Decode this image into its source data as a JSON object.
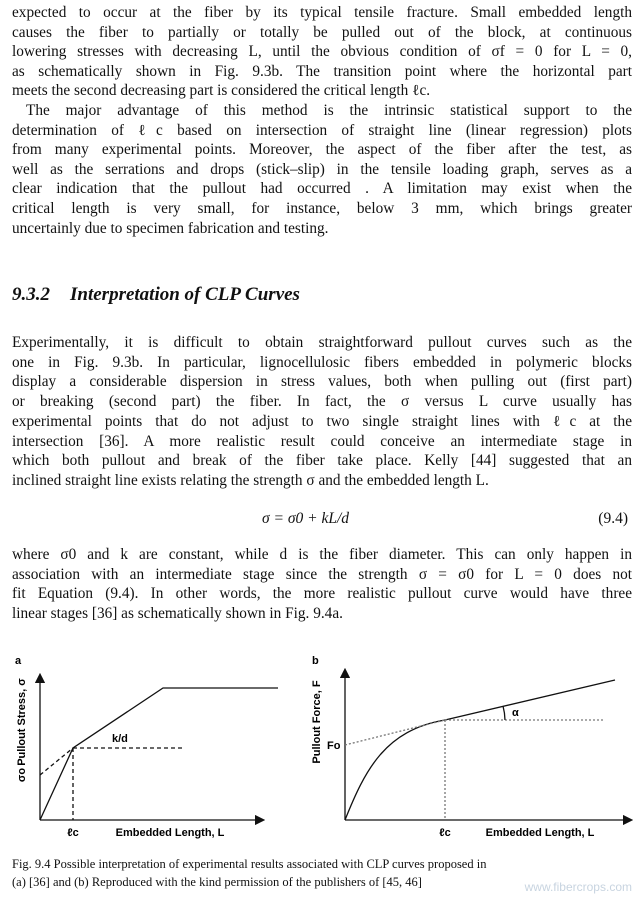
{
  "paragraphs": [
    {
      "lines": [
        "expected to occur at the fiber by its typical tensile fracture. Small embedded length",
        "causes the fiber to partially or totally be pulled out of the block, at continuous",
        "lowering stresses with decreasing L, until the obvious condition of σf = 0 for L = 0,",
        "as schematically shown in Fig. 9.3b. The transition point where the horizontal part",
        "meets the second decreasing part is considered the critical length ℓc."
      ]
    },
    {
      "lines": [
        "The major advantage of this method is the intrinsic statistical support to the",
        "determination of ℓc based on intersection of straight line (linear regression) plots",
        "from many experimental points. Moreover, the aspect of the fiber after the test, as",
        "well as the serrations and drops (stick–slip) in the tensile loading graph, serves as a",
        "clear indication that the pullout had occurred . A limitation may exist when the",
        "critical length is very small, for instance, below 3 mm, which brings greater",
        "uncertainly due to specimen fabrication and testing."
      ]
    },
    {
      "lines": [
        "Experimentally, it is difficult to obtain straightforward pullout curves such as the",
        "one in Fig. 9.3b. In particular, lignocellulosic fibers embedded in polymeric blocks",
        "display a considerable dispersion in stress values, both when pulling out (first part)",
        "or breaking (second part) the fiber. In fact, the σ versus L curve usually has",
        "experimental points that do not adjust to two single straight lines with ℓc at the",
        "intersection [36]. A more realistic result could conceive an intermediate stage in",
        "which both pullout and break of the fiber take place. Kelly [44] suggested that an",
        "inclined straight line exists relating the strength σ and the embedded length L."
      ]
    },
    {
      "lines": [
        "where σ0 and k are constant, while d is the fiber diameter. This can only happen in",
        "association with an intermediate stage since the strength σ = σ0 for L = 0 does not",
        "fit Equation (9.4). In other words, the more realistic pullout curve would have three",
        "linear stages [36] as schematically shown in Fig. 9.4a."
      ]
    }
  ],
  "heading": {
    "number": "9.3.2",
    "title": "Interpretation of CLP Curves"
  },
  "equation": {
    "formula": "σ = σ0 + kL/d",
    "number": "(9.4)"
  },
  "figure": {
    "panel_a": {
      "label": "a",
      "y_axis": "Pullout Stress, σ",
      "intercept": "σo",
      "slope": "k/d",
      "critical": "ℓc",
      "x_axis": "Embedded Length, L"
    },
    "panel_b": {
      "label": "b",
      "y_axis": "Pullout Force, F",
      "intercept": "Fo",
      "angle": "α",
      "critical": "ℓc",
      "x_axis": "Embedded Length, L"
    },
    "caption": [
      "Fig. 9.4 Possible interpretation of experimental results associated with CLP curves proposed in",
      "(a) [36] and (b) Reproduced with the kind permission of the publishers of [45, 46]"
    ]
  },
  "watermark": "www.fibercrops.com"
}
